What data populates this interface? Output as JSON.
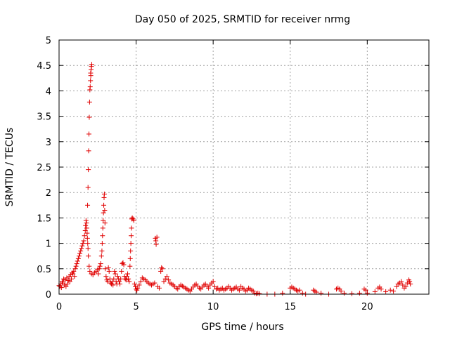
{
  "chart_data": {
    "type": "scatter",
    "title": "Day 050 of 2025, SRMTID for receiver nrmg",
    "xlabel": "GPS time / hours",
    "ylabel": "SRMTID / TECUs",
    "xlim": [
      0,
      24
    ],
    "ylim": [
      0,
      5
    ],
    "xticks": [
      0,
      5,
      10,
      15,
      20
    ],
    "xtick_labels": [
      "0",
      "5",
      "10",
      "15",
      "20"
    ],
    "yticks": [
      0,
      0.5,
      1,
      1.5,
      2,
      2.5,
      3,
      3.5,
      4,
      4.5,
      5
    ],
    "ytick_labels": [
      "0",
      "0.5",
      "1",
      "1.5",
      "2",
      "2.5",
      "3",
      "3.5",
      "4",
      "4.5",
      "5"
    ],
    "grid": true,
    "marker": "+",
    "color": "#e00000",
    "series": [
      {
        "name": "SRMTID",
        "points": [
          [
            0.0,
            0.17
          ],
          [
            0.05,
            0.15
          ],
          [
            0.1,
            0.2
          ],
          [
            0.15,
            0.13
          ],
          [
            0.2,
            0.25
          ],
          [
            0.25,
            0.22
          ],
          [
            0.3,
            0.3
          ],
          [
            0.35,
            0.18
          ],
          [
            0.4,
            0.28
          ],
          [
            0.45,
            0.15
          ],
          [
            0.5,
            0.32
          ],
          [
            0.55,
            0.2
          ],
          [
            0.6,
            0.27
          ],
          [
            0.65,
            0.35
          ],
          [
            0.7,
            0.25
          ],
          [
            0.75,
            0.38
          ],
          [
            0.8,
            0.3
          ],
          [
            0.85,
            0.42
          ],
          [
            0.9,
            0.4
          ],
          [
            0.95,
            0.45
          ],
          [
            1.0,
            0.35
          ],
          [
            1.05,
            0.5
          ],
          [
            1.1,
            0.55
          ],
          [
            1.15,
            0.6
          ],
          [
            1.2,
            0.65
          ],
          [
            1.25,
            0.7
          ],
          [
            1.3,
            0.75
          ],
          [
            1.35,
            0.8
          ],
          [
            1.4,
            0.85
          ],
          [
            1.45,
            0.9
          ],
          [
            1.5,
            0.95
          ],
          [
            1.55,
            1.0
          ],
          [
            1.6,
            1.05
          ],
          [
            1.65,
            1.15
          ],
          [
            1.7,
            1.25
          ],
          [
            1.72,
            1.35
          ],
          [
            1.75,
            1.45
          ],
          [
            1.78,
            1.4
          ],
          [
            1.8,
            1.3
          ],
          [
            1.82,
            1.2
          ],
          [
            1.84,
            1.1
          ],
          [
            1.86,
            1.0
          ],
          [
            1.88,
            0.9
          ],
          [
            1.9,
            0.75
          ],
          [
            1.85,
            1.75
          ],
          [
            1.88,
            2.1
          ],
          [
            1.9,
            2.45
          ],
          [
            1.92,
            2.82
          ],
          [
            1.94,
            3.15
          ],
          [
            1.96,
            3.48
          ],
          [
            1.98,
            3.78
          ],
          [
            2.0,
            4.02
          ],
          [
            2.02,
            4.08
          ],
          [
            2.04,
            4.2
          ],
          [
            2.06,
            4.3
          ],
          [
            2.08,
            4.42
          ],
          [
            2.1,
            4.48
          ],
          [
            2.12,
            4.52
          ],
          [
            2.05,
            4.35
          ],
          [
            1.95,
            0.55
          ],
          [
            2.0,
            0.45
          ],
          [
            2.1,
            0.4
          ],
          [
            2.2,
            0.38
          ],
          [
            2.3,
            0.42
          ],
          [
            2.4,
            0.45
          ],
          [
            2.5,
            0.48
          ],
          [
            2.55,
            0.4
          ],
          [
            2.6,
            0.5
          ],
          [
            2.65,
            0.55
          ],
          [
            2.7,
            0.6
          ],
          [
            2.75,
            0.75
          ],
          [
            2.78,
            0.85
          ],
          [
            2.8,
            1.0
          ],
          [
            2.82,
            1.15
          ],
          [
            2.84,
            1.3
          ],
          [
            2.86,
            1.45
          ],
          [
            2.88,
            1.6
          ],
          [
            2.9,
            1.75
          ],
          [
            2.92,
            1.9
          ],
          [
            2.94,
            1.97
          ],
          [
            2.96,
            1.65
          ],
          [
            2.98,
            1.4
          ],
          [
            3.0,
            0.5
          ],
          [
            3.05,
            0.35
          ],
          [
            3.1,
            0.28
          ],
          [
            3.15,
            0.25
          ],
          [
            3.2,
            0.52
          ],
          [
            3.25,
            0.45
          ],
          [
            3.3,
            0.3
          ],
          [
            3.35,
            0.22
          ],
          [
            3.4,
            0.2
          ],
          [
            3.45,
            0.25
          ],
          [
            3.5,
            0.18
          ],
          [
            3.55,
            0.3
          ],
          [
            3.6,
            0.45
          ],
          [
            3.65,
            0.4
          ],
          [
            3.7,
            0.25
          ],
          [
            3.75,
            0.2
          ],
          [
            3.8,
            0.35
          ],
          [
            3.85,
            0.3
          ],
          [
            3.9,
            0.25
          ],
          [
            3.95,
            0.2
          ],
          [
            4.0,
            0.3
          ],
          [
            4.05,
            0.45
          ],
          [
            4.1,
            0.6
          ],
          [
            4.15,
            0.62
          ],
          [
            4.2,
            0.58
          ],
          [
            4.25,
            0.35
          ],
          [
            4.3,
            0.3
          ],
          [
            4.35,
            0.28
          ],
          [
            4.4,
            0.35
          ],
          [
            4.45,
            0.4
          ],
          [
            4.5,
            0.3
          ],
          [
            4.55,
            0.25
          ],
          [
            4.6,
            0.55
          ],
          [
            4.62,
            0.7
          ],
          [
            4.64,
            0.85
          ],
          [
            4.66,
            1.0
          ],
          [
            4.68,
            1.15
          ],
          [
            4.7,
            1.3
          ],
          [
            4.72,
            1.48
          ],
          [
            4.75,
            1.5
          ],
          [
            4.8,
            1.48
          ],
          [
            4.85,
            1.45
          ],
          [
            4.9,
            0.2
          ],
          [
            4.95,
            0.15
          ],
          [
            5.0,
            0.1
          ],
          [
            5.05,
            0.08
          ],
          [
            5.1,
            0.12
          ],
          [
            5.2,
            0.18
          ],
          [
            5.3,
            0.25
          ],
          [
            5.4,
            0.32
          ],
          [
            5.5,
            0.3
          ],
          [
            5.6,
            0.28
          ],
          [
            5.7,
            0.25
          ],
          [
            5.8,
            0.22
          ],
          [
            5.9,
            0.2
          ],
          [
            6.0,
            0.18
          ],
          [
            6.1,
            0.2
          ],
          [
            6.2,
            0.22
          ],
          [
            6.25,
            1.1
          ],
          [
            6.28,
            1.05
          ],
          [
            6.3,
            0.98
          ],
          [
            6.35,
            1.12
          ],
          [
            6.4,
            0.15
          ],
          [
            6.5,
            0.12
          ],
          [
            6.6,
            0.45
          ],
          [
            6.65,
            0.52
          ],
          [
            6.7,
            0.5
          ],
          [
            6.8,
            0.25
          ],
          [
            6.9,
            0.3
          ],
          [
            7.0,
            0.35
          ],
          [
            7.1,
            0.28
          ],
          [
            7.2,
            0.22
          ],
          [
            7.3,
            0.2
          ],
          [
            7.4,
            0.18
          ],
          [
            7.5,
            0.15
          ],
          [
            7.6,
            0.12
          ],
          [
            7.7,
            0.1
          ],
          [
            7.8,
            0.15
          ],
          [
            7.9,
            0.18
          ],
          [
            8.0,
            0.16
          ],
          [
            8.1,
            0.14
          ],
          [
            8.2,
            0.12
          ],
          [
            8.3,
            0.1
          ],
          [
            8.4,
            0.08
          ],
          [
            8.5,
            0.06
          ],
          [
            8.6,
            0.1
          ],
          [
            8.7,
            0.14
          ],
          [
            8.8,
            0.18
          ],
          [
            8.9,
            0.2
          ],
          [
            9.0,
            0.16
          ],
          [
            9.1,
            0.12
          ],
          [
            9.2,
            0.1
          ],
          [
            9.3,
            0.14
          ],
          [
            9.4,
            0.18
          ],
          [
            9.5,
            0.2
          ],
          [
            9.6,
            0.15
          ],
          [
            9.7,
            0.12
          ],
          [
            9.8,
            0.18
          ],
          [
            9.9,
            0.22
          ],
          [
            10.0,
            0.25
          ],
          [
            10.1,
            0.15
          ],
          [
            10.2,
            0.1
          ],
          [
            10.3,
            0.12
          ],
          [
            10.4,
            0.08
          ],
          [
            10.5,
            0.1
          ],
          [
            10.6,
            0.12
          ],
          [
            10.7,
            0.08
          ],
          [
            10.8,
            0.1
          ],
          [
            10.9,
            0.12
          ],
          [
            11.0,
            0.15
          ],
          [
            11.1,
            0.12
          ],
          [
            11.2,
            0.08
          ],
          [
            11.3,
            0.1
          ],
          [
            11.4,
            0.12
          ],
          [
            11.5,
            0.14
          ],
          [
            11.6,
            0.1
          ],
          [
            11.7,
            0.08
          ],
          [
            11.8,
            0.15
          ],
          [
            11.9,
            0.12
          ],
          [
            12.0,
            0.1
          ],
          [
            12.1,
            0.06
          ],
          [
            12.2,
            0.08
          ],
          [
            12.3,
            0.12
          ],
          [
            12.4,
            0.1
          ],
          [
            12.5,
            0.08
          ],
          [
            12.6,
            0.06
          ],
          [
            12.7,
            0.02
          ],
          [
            12.8,
            0.01
          ],
          [
            12.9,
            0.02
          ],
          [
            13.0,
            0.01
          ],
          [
            13.5,
            0.0
          ],
          [
            14.0,
            0.0
          ],
          [
            14.5,
            0.02
          ],
          [
            15.0,
            0.12
          ],
          [
            15.1,
            0.14
          ],
          [
            15.2,
            0.12
          ],
          [
            15.3,
            0.1
          ],
          [
            15.4,
            0.08
          ],
          [
            15.5,
            0.06
          ],
          [
            15.6,
            0.08
          ],
          [
            15.8,
            0.02
          ],
          [
            16.0,
            0.0
          ],
          [
            16.5,
            0.08
          ],
          [
            16.6,
            0.06
          ],
          [
            16.7,
            0.04
          ],
          [
            17.0,
            0.02
          ],
          [
            17.5,
            0.0
          ],
          [
            18.0,
            0.1
          ],
          [
            18.1,
            0.12
          ],
          [
            18.2,
            0.1
          ],
          [
            18.3,
            0.06
          ],
          [
            18.5,
            0.02
          ],
          [
            19.0,
            0.01
          ],
          [
            19.5,
            0.02
          ],
          [
            19.8,
            0.1
          ],
          [
            19.9,
            0.08
          ],
          [
            20.0,
            0.02
          ],
          [
            20.5,
            0.05
          ],
          [
            20.7,
            0.12
          ],
          [
            20.8,
            0.14
          ],
          [
            20.9,
            0.1
          ],
          [
            21.2,
            0.05
          ],
          [
            21.5,
            0.08
          ],
          [
            21.7,
            0.06
          ],
          [
            21.9,
            0.15
          ],
          [
            22.0,
            0.2
          ],
          [
            22.1,
            0.22
          ],
          [
            22.2,
            0.25
          ],
          [
            22.3,
            0.18
          ],
          [
            22.4,
            0.12
          ],
          [
            22.5,
            0.15
          ],
          [
            22.6,
            0.22
          ],
          [
            22.7,
            0.28
          ],
          [
            22.75,
            0.25
          ],
          [
            22.8,
            0.2
          ]
        ]
      }
    ]
  }
}
